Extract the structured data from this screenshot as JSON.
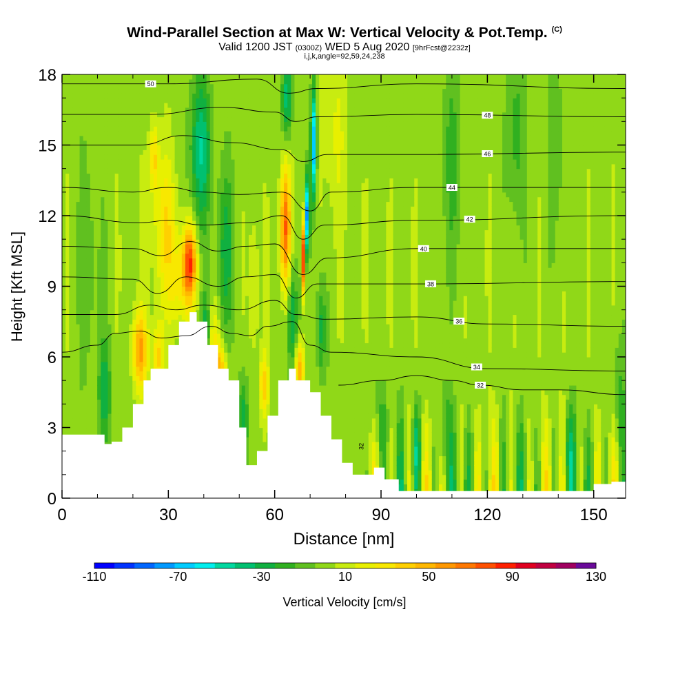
{
  "header": {
    "title": "Wind-Parallel Section at Max W: Vertical Velocity & Pot.Temp.",
    "title_mark": "(C)",
    "valid_prefix": "Valid 1200 JST",
    "valid_utc": "(0300Z)",
    "valid_date": "WED 5 Aug 2020",
    "forecast": "[9hrFcst@2232z]",
    "indices": "i,j,k,angle=92,59,24,238"
  },
  "chart_data": {
    "type": "heatmap",
    "xlabel": "Distance [nm]",
    "ylabel": "Height [Kft MSL]",
    "xlim": [
      0,
      159
    ],
    "ylim": [
      0,
      18
    ],
    "x_ticks": [
      0,
      30,
      60,
      90,
      120,
      150
    ],
    "y_ticks": [
      0,
      3,
      6,
      9,
      12,
      15,
      18
    ],
    "colorbar": {
      "label": "Vertical Velocity [cm/s]",
      "range": [
        -110,
        130
      ],
      "step": 10,
      "tick_labels": [
        "-110",
        "-70",
        "-30",
        "10",
        "50",
        "90",
        "130"
      ],
      "colors": [
        "#0000ff",
        "#0033ff",
        "#0066ff",
        "#0099ff",
        "#00ccff",
        "#00eeee",
        "#00d8a0",
        "#00c070",
        "#10b040",
        "#30b020",
        "#60c020",
        "#90d818",
        "#c8ec10",
        "#e8f000",
        "#f8e800",
        "#ffd000",
        "#ffb800",
        "#ff9800",
        "#ff7800",
        "#ff5000",
        "#ff2000",
        "#e00020",
        "#c00040",
        "#a00060",
        "#6a0a9a"
      ]
    },
    "terrain": {
      "x": [
        0,
        10,
        12,
        14,
        17,
        20,
        23,
        25,
        28,
        30,
        33,
        36,
        38,
        41,
        44,
        47,
        50,
        52,
        55,
        58,
        61,
        64,
        66,
        68,
        70,
        73,
        76,
        79,
        82,
        85,
        88,
        91,
        95,
        98,
        102,
        108,
        115,
        125,
        135,
        142,
        145,
        150,
        155,
        159
      ],
      "height_kft": [
        2.7,
        2.7,
        2.3,
        2.4,
        3.0,
        4.0,
        5.0,
        5.5,
        5.5,
        6.5,
        7.5,
        7.9,
        7.5,
        6.5,
        5.5,
        5.0,
        3.0,
        1.4,
        2.0,
        3.5,
        5.0,
        5.5,
        5.0,
        5.0,
        4.5,
        3.5,
        2.5,
        1.5,
        1.0,
        1.0,
        1.3,
        0.8,
        0.3,
        0.3,
        0.3,
        0.3,
        0.3,
        0.3,
        0.3,
        0.3,
        0.3,
        0.6,
        0.7,
        0.7
      ]
    },
    "theta_contours": [
      {
        "label": "50",
        "label_x": 25,
        "points": [
          [
            0,
            17.6
          ],
          [
            30,
            17.6
          ],
          [
            55,
            17.8
          ],
          [
            64,
            17.2
          ],
          [
            72,
            17.4
          ],
          [
            100,
            17.6
          ],
          [
            159,
            17.4
          ]
        ]
      },
      {
        "label": "48",
        "label_x": 120,
        "points": [
          [
            0,
            16.3
          ],
          [
            25,
            16.3
          ],
          [
            45,
            16.6
          ],
          [
            60,
            16.4
          ],
          [
            66,
            16.0
          ],
          [
            72,
            16.2
          ],
          [
            100,
            16.3
          ],
          [
            159,
            16.2
          ]
        ]
      },
      {
        "label": "46",
        "label_x": 120,
        "points": [
          [
            0,
            15.0
          ],
          [
            22,
            15.0
          ],
          [
            34,
            15.4
          ],
          [
            48,
            15.1
          ],
          [
            62,
            14.8
          ],
          [
            68,
            14.3
          ],
          [
            75,
            14.6
          ],
          [
            100,
            14.6
          ],
          [
            159,
            14.7
          ]
        ]
      },
      {
        "label": "44",
        "label_x": 110,
        "points": [
          [
            0,
            13.2
          ],
          [
            20,
            13.0
          ],
          [
            30,
            13.2
          ],
          [
            40,
            13.0
          ],
          [
            50,
            12.9
          ],
          [
            62,
            13.0
          ],
          [
            70,
            12.2
          ],
          [
            76,
            13.0
          ],
          [
            100,
            13.2
          ],
          [
            159,
            13.2
          ]
        ]
      },
      {
        "label": "42",
        "label_x": 115,
        "points": [
          [
            0,
            12.0
          ],
          [
            22,
            11.7
          ],
          [
            30,
            11.8
          ],
          [
            40,
            11.6
          ],
          [
            52,
            11.7
          ],
          [
            62,
            12.0
          ],
          [
            68,
            11.0
          ],
          [
            74,
            11.6
          ],
          [
            100,
            11.8
          ],
          [
            159,
            12.0
          ]
        ]
      },
      {
        "label": "40",
        "label_x": 102,
        "points": [
          [
            0,
            10.7
          ],
          [
            20,
            10.6
          ],
          [
            28,
            10.3
          ],
          [
            36,
            10.9
          ],
          [
            44,
            10.5
          ],
          [
            52,
            10.7
          ],
          [
            60,
            10.8
          ],
          [
            68,
            9.5
          ],
          [
            75,
            10.2
          ],
          [
            100,
            10.6
          ],
          [
            159,
            10.6
          ]
        ]
      },
      {
        "label": "38",
        "label_x": 104,
        "points": [
          [
            0,
            9.4
          ],
          [
            20,
            9.3
          ],
          [
            27,
            8.7
          ],
          [
            35,
            9.4
          ],
          [
            44,
            9.0
          ],
          [
            52,
            9.4
          ],
          [
            60,
            9.5
          ],
          [
            66,
            8.5
          ],
          [
            72,
            9.1
          ],
          [
            100,
            9.1
          ],
          [
            159,
            9.2
          ]
        ]
      },
      {
        "label": "36",
        "label_x": 112,
        "points": [
          [
            0,
            7.8
          ],
          [
            15,
            7.8
          ],
          [
            25,
            8.2
          ],
          [
            32,
            8.0
          ],
          [
            40,
            8.2
          ],
          [
            50,
            8.0
          ],
          [
            60,
            8.4
          ],
          [
            66,
            7.8
          ],
          [
            74,
            7.6
          ],
          [
            100,
            7.7
          ],
          [
            120,
            7.4
          ],
          [
            159,
            7.3
          ]
        ]
      },
      {
        "label": "34",
        "label_x": 117,
        "points": [
          [
            0,
            6.2
          ],
          [
            10,
            6.5
          ],
          [
            15,
            7.0
          ],
          [
            22,
            7.1
          ],
          [
            28,
            6.8
          ],
          [
            35,
            6.9
          ],
          [
            42,
            7.3
          ],
          [
            48,
            7.0
          ],
          [
            53,
            6.9
          ],
          [
            58,
            7.3
          ],
          [
            65,
            7.5
          ],
          [
            70,
            6.5
          ],
          [
            76,
            6.2
          ],
          [
            100,
            6.0
          ],
          [
            120,
            5.5
          ],
          [
            159,
            5.4
          ]
        ]
      },
      {
        "label": "32",
        "label_x": 118,
        "points": [
          [
            78,
            4.8
          ],
          [
            90,
            5.0
          ],
          [
            100,
            5.2
          ],
          [
            110,
            5.0
          ],
          [
            118,
            4.8
          ],
          [
            130,
            4.6
          ],
          [
            140,
            4.6
          ],
          [
            159,
            4.4
          ]
        ]
      }
    ],
    "annotation_label": "32"
  }
}
